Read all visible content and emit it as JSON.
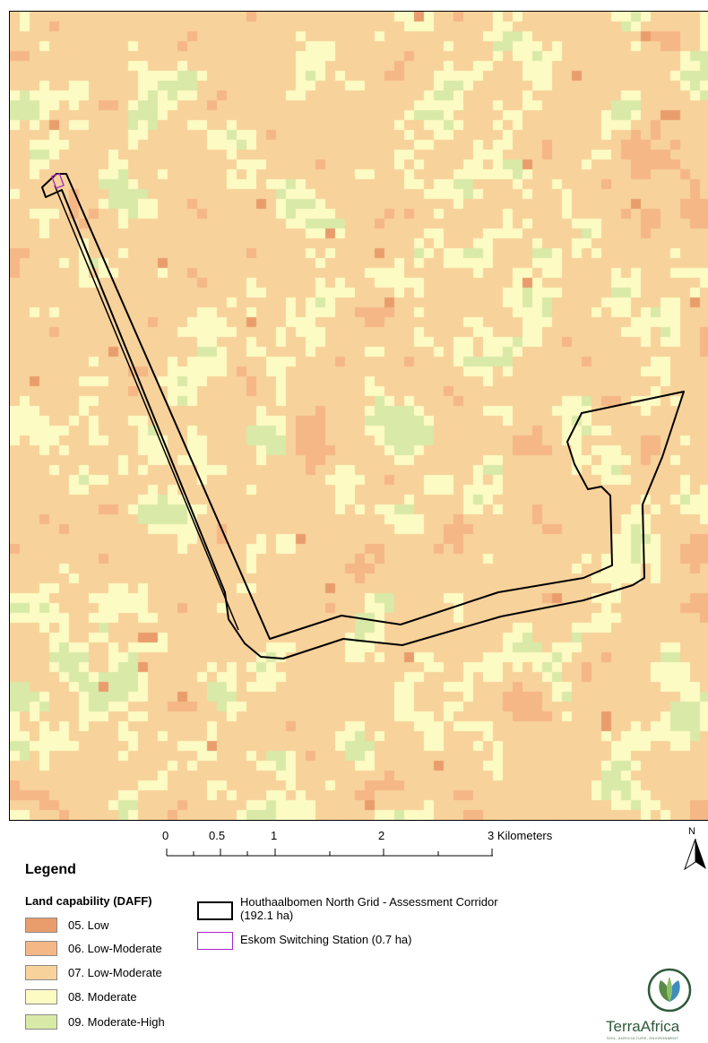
{
  "legend": {
    "title": "Legend",
    "land_capability_title": "Land capability (DAFF)",
    "classes": [
      {
        "label": "05. Low",
        "color": "#ea9d6c"
      },
      {
        "label": "06. Low-Moderate",
        "color": "#f5b785"
      },
      {
        "label": "07. Low-Moderate",
        "color": "#f8d29b"
      },
      {
        "label": "08. Moderate",
        "color": "#fdfbc4"
      },
      {
        "label": "09. Moderate-High",
        "color": "#d9e9a8"
      }
    ],
    "corridor_label": "Houthaalbomen North Grid - Assessment Corridor (192.1 ha)",
    "corridor_color": "#000000",
    "station_label": "Eskom Switching Station (0.7 ha)",
    "station_color": "#a626c7"
  },
  "scalebar": {
    "ticks": [
      "0",
      "0.5",
      "1",
      "2",
      "3 Kilometers"
    ]
  },
  "north_arrow": {
    "label": "N"
  },
  "logo": {
    "name": "TerraAfrica",
    "tagline": "SOIL, AGRICULTURE, ENVIRONMENT",
    "icon": "terraafrica-leaf-logo"
  }
}
